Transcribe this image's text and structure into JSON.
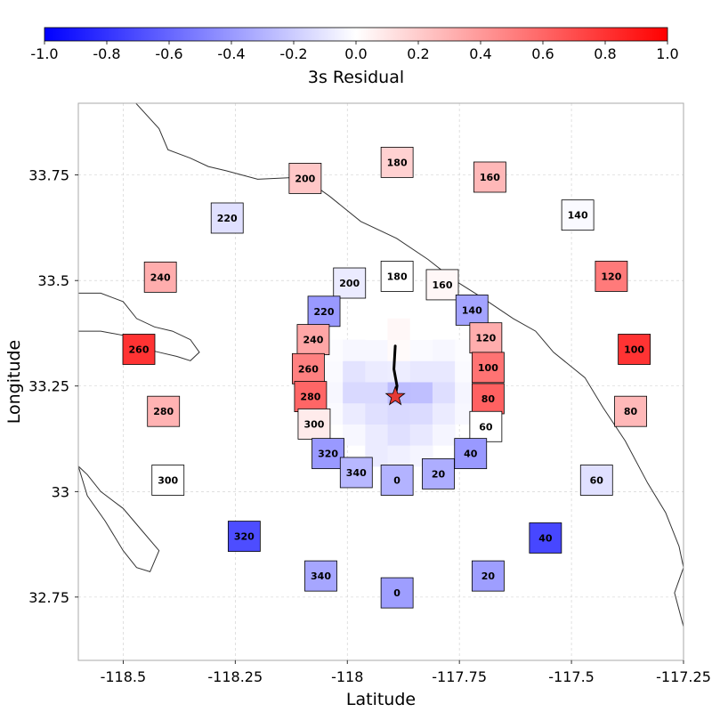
{
  "chart_data": {
    "type": "heatmap",
    "title": "",
    "xlabel": "Latitude",
    "ylabel": "Longitude",
    "xlim": [
      -118.6,
      -117.25
    ],
    "ylim": [
      32.6,
      33.92
    ],
    "xticks": [
      {
        "value": -118.5,
        "label": "-118.5"
      },
      {
        "value": -118.25,
        "label": "-118.25"
      },
      {
        "value": -118.0,
        "label": "-118"
      },
      {
        "value": -117.75,
        "label": "-117.75"
      },
      {
        "value": -117.5,
        "label": "-117.5"
      },
      {
        "value": -117.25,
        "label": "-117.25"
      }
    ],
    "yticks": [
      {
        "value": 33.75,
        "label": "33.75"
      },
      {
        "value": 33.5,
        "label": "33.5"
      },
      {
        "value": 33.25,
        "label": "33.25"
      },
      {
        "value": 33.0,
        "label": "33"
      },
      {
        "value": 32.75,
        "label": "32.75"
      }
    ],
    "colorbar": {
      "label": "3s Residual",
      "range": [
        -1.0,
        1.0
      ],
      "colors": [
        "#0000ff",
        "#ffffff",
        "#ff0000"
      ],
      "ticks": [
        {
          "value": -1.0,
          "label": "-1.0"
        },
        {
          "value": -0.8,
          "label": "-0.8"
        },
        {
          "value": -0.6,
          "label": "-0.6"
        },
        {
          "value": -0.4,
          "label": "-0.4"
        },
        {
          "value": -0.2,
          "label": "-0.2"
        },
        {
          "value": 0.0,
          "label": "0.0"
        },
        {
          "value": 0.2,
          "label": "0.2"
        },
        {
          "value": 0.4,
          "label": "0.4"
        },
        {
          "value": 0.6,
          "label": "0.6"
        },
        {
          "value": 0.8,
          "label": "0.8"
        },
        {
          "value": 1.0,
          "label": "1.0"
        }
      ]
    },
    "epicenter": {
      "lon": -117.893,
      "lat": 33.225
    },
    "rupture_trace": [
      {
        "lon": -117.893,
        "lat": 33.345
      },
      {
        "lon": -117.896,
        "lat": 33.29
      },
      {
        "lon": -117.889,
        "lat": 33.25
      },
      {
        "lon": -117.893,
        "lat": 33.225
      }
    ],
    "grid": {
      "lon_start": -118.06,
      "lat_start": 33.06,
      "cell_size": 0.05,
      "rows": 7,
      "cols": 7,
      "values": [
        [
          null,
          null,
          -0.08,
          -0.06,
          -0.04,
          null,
          null
        ],
        [
          null,
          -0.03,
          -0.08,
          -0.12,
          -0.09,
          -0.04,
          null
        ],
        [
          -0.02,
          -0.08,
          -0.12,
          -0.15,
          -0.14,
          -0.08,
          -0.03
        ],
        [
          -0.03,
          -0.15,
          -0.15,
          -0.26,
          -0.25,
          -0.13,
          -0.04
        ],
        [
          -0.02,
          -0.11,
          -0.08,
          -0.07,
          -0.09,
          -0.09,
          -0.02
        ],
        [
          -0.01,
          -0.03,
          -0.03,
          0.02,
          -0.02,
          -0.03,
          -0.01
        ],
        [
          null,
          null,
          0.0,
          0.03,
          0.0,
          null,
          null
        ]
      ]
    },
    "stations": [
      {
        "label": "180",
        "lon": -117.889,
        "lat": 33.78,
        "value": 0.18
      },
      {
        "label": "160",
        "lon": -117.682,
        "lat": 33.745,
        "value": 0.28
      },
      {
        "label": "200",
        "lon": -118.094,
        "lat": 33.742,
        "value": 0.22
      },
      {
        "label": "140",
        "lon": -117.486,
        "lat": 33.655,
        "value": -0.02
      },
      {
        "label": "220",
        "lon": -118.268,
        "lat": 33.648,
        "value": -0.12
      },
      {
        "label": "240",
        "lon": -118.417,
        "lat": 33.508,
        "value": 0.32
      },
      {
        "label": "120",
        "lon": -117.411,
        "lat": 33.51,
        "value": 0.52
      },
      {
        "label": "180",
        "lon": -117.889,
        "lat": 33.51,
        "value": 0.0
      },
      {
        "label": "200",
        "lon": -117.995,
        "lat": 33.494,
        "value": -0.08
      },
      {
        "label": "160",
        "lon": -117.788,
        "lat": 33.49,
        "value": 0.03
      },
      {
        "label": "220",
        "lon": -118.052,
        "lat": 33.427,
        "value": -0.4
      },
      {
        "label": "140",
        "lon": -117.722,
        "lat": 33.43,
        "value": -0.36
      },
      {
        "label": "240",
        "lon": -118.076,
        "lat": 33.36,
        "value": 0.35
      },
      {
        "label": "120",
        "lon": -117.691,
        "lat": 33.364,
        "value": 0.32
      },
      {
        "label": "260",
        "lon": -118.465,
        "lat": 33.337,
        "value": 0.8
      },
      {
        "label": "100",
        "lon": -117.36,
        "lat": 33.337,
        "value": 0.8
      },
      {
        "label": "260",
        "lon": -118.087,
        "lat": 33.291,
        "value": 0.5
      },
      {
        "label": "100",
        "lon": -117.686,
        "lat": 33.294,
        "value": 0.55
      },
      {
        "label": "280",
        "lon": -118.082,
        "lat": 33.225,
        "value": 0.6
      },
      {
        "label": "80",
        "lon": -117.686,
        "lat": 33.22,
        "value": 0.62
      },
      {
        "label": "280",
        "lon": -118.41,
        "lat": 33.19,
        "value": 0.3
      },
      {
        "label": "80",
        "lon": -117.368,
        "lat": 33.19,
        "value": 0.28
      },
      {
        "label": "300",
        "lon": -118.074,
        "lat": 33.16,
        "value": 0.08
      },
      {
        "label": "60",
        "lon": -117.691,
        "lat": 33.154,
        "value": 0.0
      },
      {
        "label": "320",
        "lon": -118.043,
        "lat": 33.09,
        "value": -0.4
      },
      {
        "label": "40",
        "lon": -117.725,
        "lat": 33.09,
        "value": -0.4
      },
      {
        "label": "340",
        "lon": -117.98,
        "lat": 33.045,
        "value": -0.28
      },
      {
        "label": "20",
        "lon": -117.797,
        "lat": 33.042,
        "value": -0.32
      },
      {
        "label": "0",
        "lon": -117.889,
        "lat": 33.027,
        "value": -0.3
      },
      {
        "label": "300",
        "lon": -118.4,
        "lat": 33.027,
        "value": 0.0
      },
      {
        "label": "60",
        "lon": -117.444,
        "lat": 33.027,
        "value": -0.12
      },
      {
        "label": "320",
        "lon": -118.23,
        "lat": 32.894,
        "value": -0.7
      },
      {
        "label": "40",
        "lon": -117.558,
        "lat": 32.89,
        "value": -0.72
      },
      {
        "label": "340",
        "lon": -118.059,
        "lat": 32.8,
        "value": -0.35
      },
      {
        "label": "20",
        "lon": -117.686,
        "lat": 32.8,
        "value": -0.38
      },
      {
        "label": "0",
        "lon": -117.889,
        "lat": 32.76,
        "value": -0.38
      }
    ],
    "coastlines": [
      [
        [
          -118.48,
          33.93
        ],
        [
          -118.42,
          33.86
        ],
        [
          -118.4,
          33.81
        ],
        [
          -118.35,
          33.79
        ],
        [
          -118.31,
          33.77
        ],
        [
          -118.27,
          33.76
        ],
        [
          -118.2,
          33.74
        ],
        [
          -118.1,
          33.745
        ],
        [
          -118.04,
          33.7
        ],
        [
          -117.97,
          33.64
        ],
        [
          -117.89,
          33.6
        ],
        [
          -117.82,
          33.55
        ],
        [
          -117.76,
          33.5
        ],
        [
          -117.7,
          33.46
        ],
        [
          -117.63,
          33.41
        ],
        [
          -117.58,
          33.38
        ],
        [
          -117.54,
          33.33
        ],
        [
          -117.47,
          33.27
        ],
        [
          -117.43,
          33.2
        ],
        [
          -117.38,
          33.12
        ],
        [
          -117.33,
          33.02
        ],
        [
          -117.29,
          32.95
        ],
        [
          -117.26,
          32.87
        ],
        [
          -117.25,
          32.82
        ],
        [
          -117.27,
          32.76
        ],
        [
          -117.25,
          32.68
        ],
        [
          -117.23,
          32.66
        ]
      ],
      [
        [
          -118.6,
          33.47
        ],
        [
          -118.55,
          33.47
        ],
        [
          -118.5,
          33.45
        ],
        [
          -118.47,
          33.41
        ],
        [
          -118.43,
          33.39
        ],
        [
          -118.39,
          33.38
        ],
        [
          -118.35,
          33.36
        ],
        [
          -118.33,
          33.33
        ],
        [
          -118.35,
          33.31
        ],
        [
          -118.38,
          33.32
        ],
        [
          -118.42,
          33.33
        ],
        [
          -118.46,
          33.34
        ],
        [
          -118.5,
          33.37
        ],
        [
          -118.55,
          33.38
        ],
        [
          -118.6,
          33.38
        ]
      ],
      [
        [
          -118.6,
          33.06
        ],
        [
          -118.58,
          32.99
        ],
        [
          -118.54,
          32.93
        ],
        [
          -118.5,
          32.86
        ],
        [
          -118.47,
          32.82
        ],
        [
          -118.44,
          32.81
        ],
        [
          -118.42,
          32.86
        ],
        [
          -118.46,
          32.91
        ],
        [
          -118.5,
          32.96
        ],
        [
          -118.55,
          33.0
        ],
        [
          -118.58,
          33.04
        ],
        [
          -118.6,
          33.06
        ]
      ]
    ]
  }
}
